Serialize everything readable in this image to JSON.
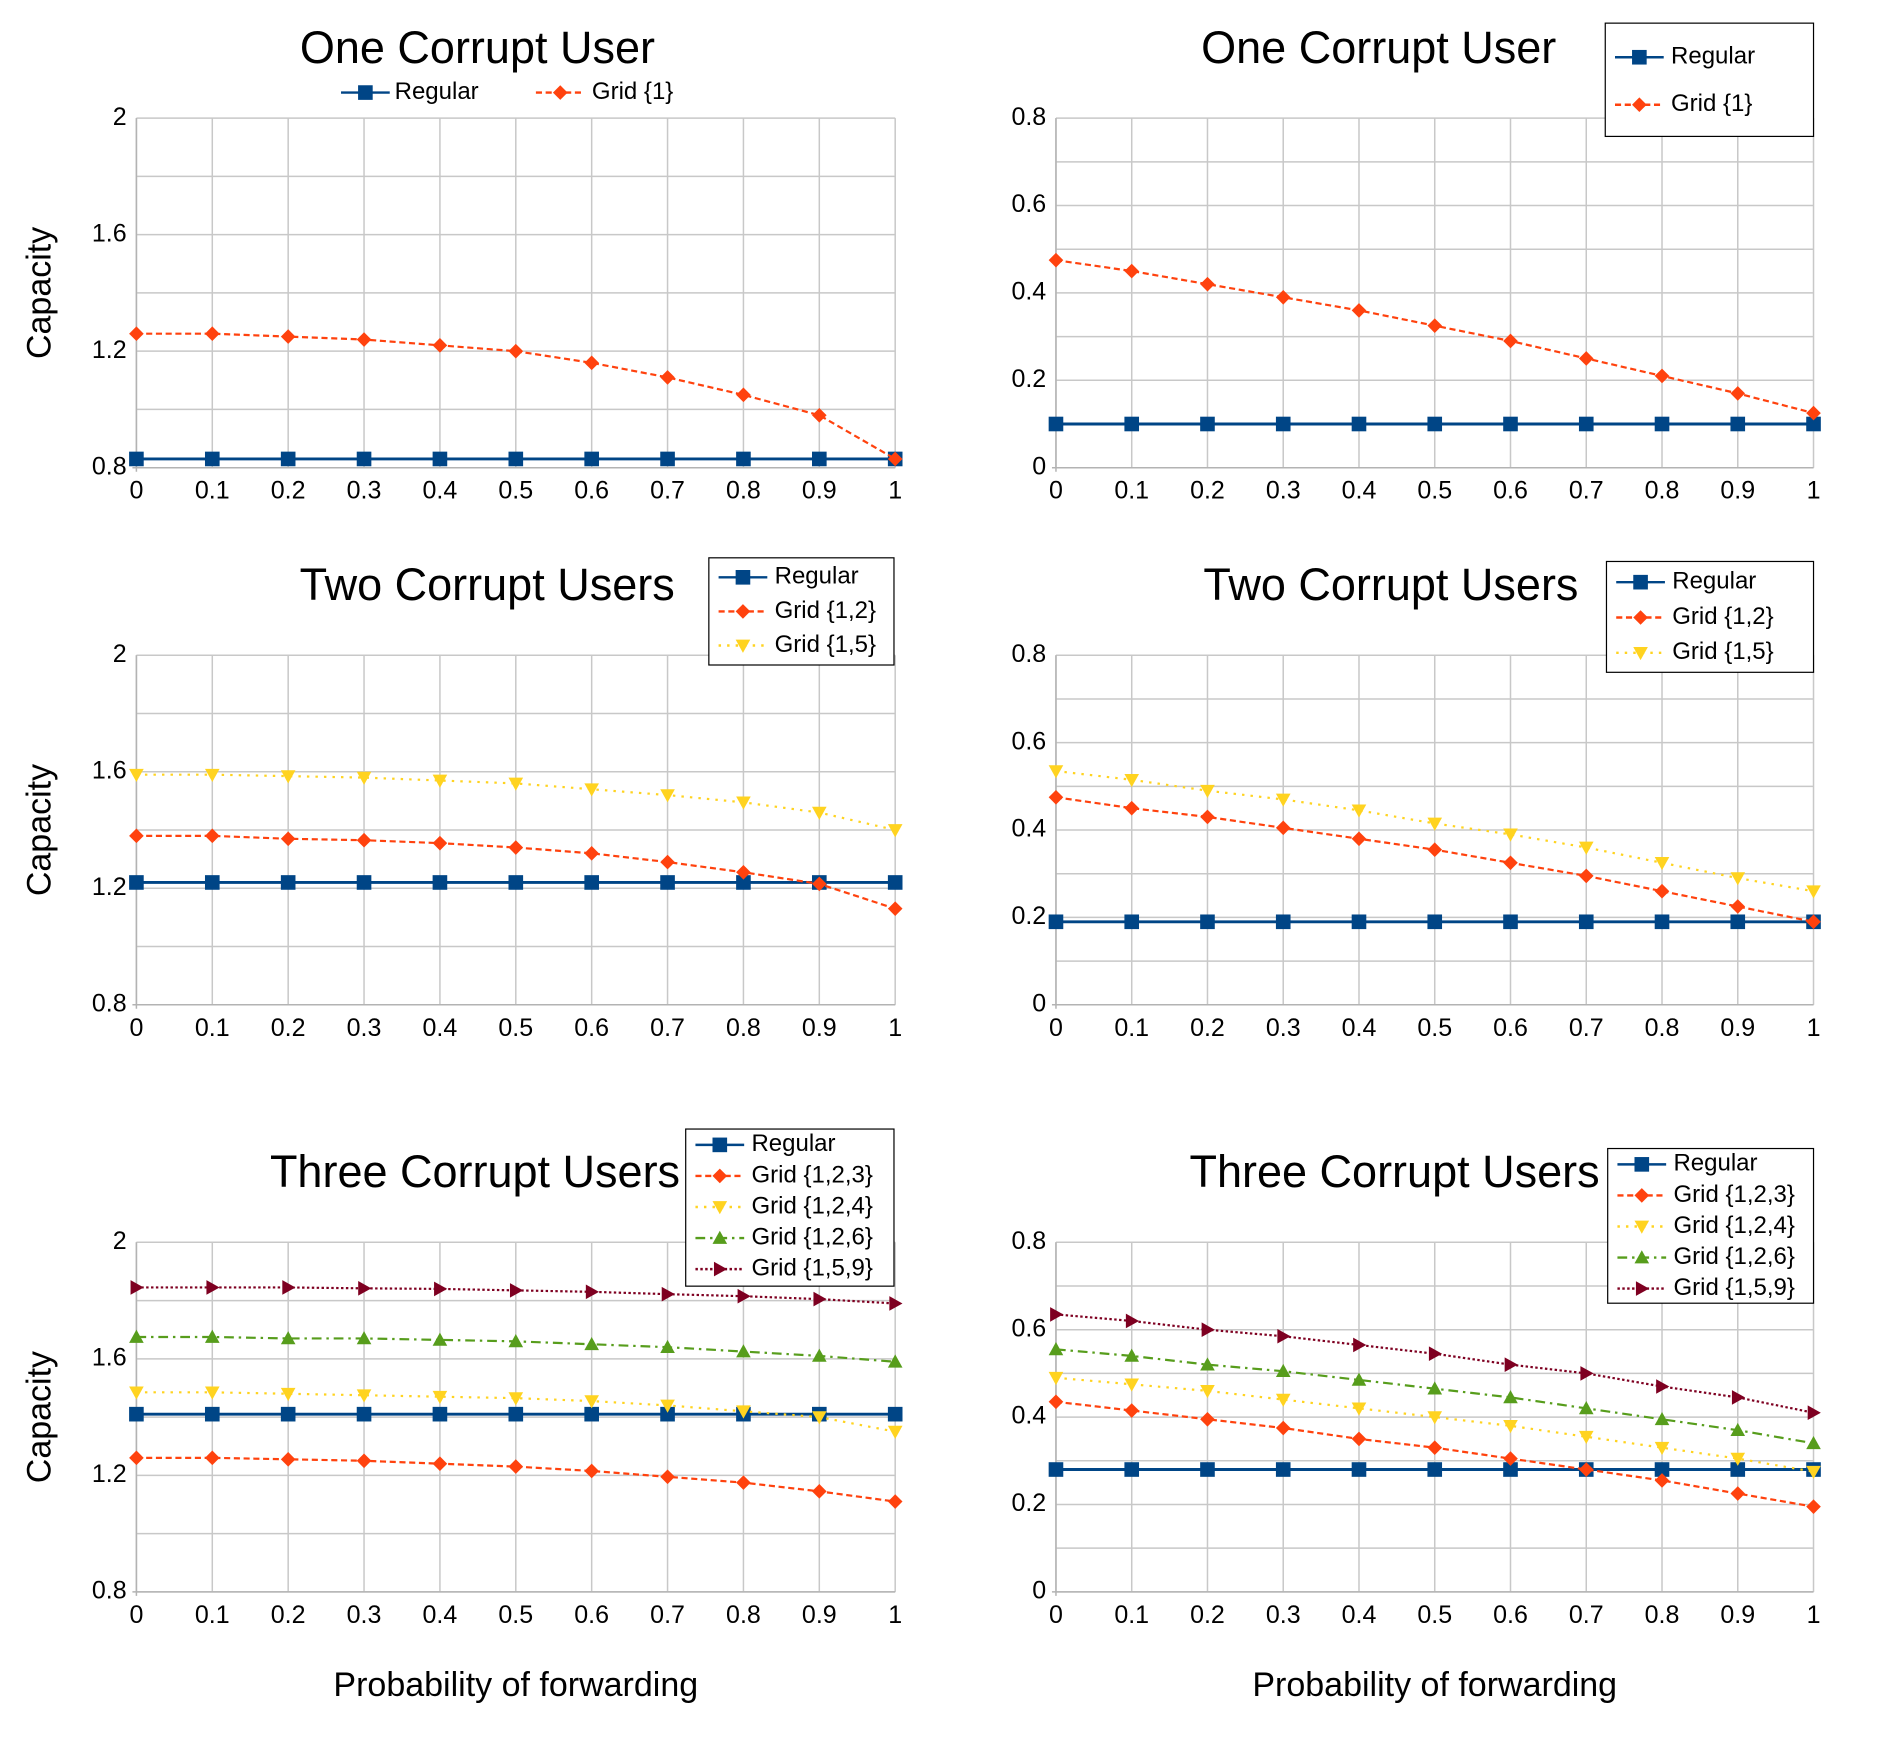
{
  "colors": {
    "Regular": "#004586",
    "Grid {1}": "#ff420e",
    "Grid {1,2}": "#ff420e",
    "Grid {1,2,3}": "#ff420e",
    "Grid {1,5}": "#ffd320",
    "Grid {1,2,4}": "#ffd320",
    "Grid {1,2,6}": "#579d1c",
    "Grid {1,5,9}": "#7e0021"
  },
  "markers": {
    "Regular": "square",
    "Grid {1}": "diamond",
    "Grid {1,2}": "diamond",
    "Grid {1,2,3}": "diamond",
    "Grid {1,5}": "triangle-down",
    "Grid {1,2,4}": "triangle-down",
    "Grid {1,2,6}": "triangle-up",
    "Grid {1,5,9}": "triangle-right"
  },
  "chart_data": [
    {
      "type": "line",
      "title": "One Corrupt User",
      "ylabel": "Capacity",
      "xlabel": "",
      "ylim": [
        0.8,
        2
      ],
      "yticks": [
        "0.8",
        "1.2",
        "1.6",
        "2"
      ],
      "xticks": [
        "0",
        "0.1",
        "0.2",
        "0.3",
        "0.4",
        "0.5",
        "0.6",
        "0.7",
        "0.8",
        "0.9",
        "1"
      ],
      "legend_placement": "top",
      "x": [
        0,
        0.1,
        0.2,
        0.3,
        0.4,
        0.5,
        0.6,
        0.7,
        0.8,
        0.9,
        1
      ],
      "series": [
        {
          "name": "Regular",
          "values": [
            0.83,
            0.83,
            0.83,
            0.83,
            0.83,
            0.83,
            0.83,
            0.83,
            0.83,
            0.83,
            0.83
          ]
        },
        {
          "name": "Grid {1}",
          "values": [
            1.26,
            1.26,
            1.25,
            1.24,
            1.22,
            1.2,
            1.16,
            1.11,
            1.05,
            0.98,
            0.83
          ]
        }
      ]
    },
    {
      "type": "line",
      "title": "One Corrupt User",
      "ylabel": "",
      "xlabel": "",
      "ylim": [
        0,
        0.8
      ],
      "yticks": [
        "0",
        "0.2",
        "0.4",
        "0.6",
        "0.8"
      ],
      "xticks": [
        "0",
        "0.1",
        "0.2",
        "0.3",
        "0.4",
        "0.5",
        "0.6",
        "0.7",
        "0.8",
        "0.9",
        "1"
      ],
      "legend_placement": "top-right",
      "x": [
        0,
        0.1,
        0.2,
        0.3,
        0.4,
        0.5,
        0.6,
        0.7,
        0.8,
        0.9,
        1
      ],
      "series": [
        {
          "name": "Regular",
          "values": [
            0.1,
            0.1,
            0.1,
            0.1,
            0.1,
            0.1,
            0.1,
            0.1,
            0.1,
            0.1,
            0.1
          ]
        },
        {
          "name": "Grid {1}",
          "values": [
            0.475,
            0.45,
            0.42,
            0.39,
            0.36,
            0.325,
            0.29,
            0.25,
            0.21,
            0.17,
            0.125
          ]
        }
      ]
    },
    {
      "type": "line",
      "title": "Two Corrupt Users",
      "ylabel": "Capacity",
      "xlabel": "",
      "ylim": [
        0.8,
        2
      ],
      "yticks": [
        "0.8",
        "1.2",
        "1.6",
        "2"
      ],
      "xticks": [
        "0",
        "0.1",
        "0.2",
        "0.3",
        "0.4",
        "0.5",
        "0.6",
        "0.7",
        "0.8",
        "0.9",
        "1"
      ],
      "legend_placement": "top-right",
      "x": [
        0,
        0.1,
        0.2,
        0.3,
        0.4,
        0.5,
        0.6,
        0.7,
        0.8,
        0.9,
        1
      ],
      "series": [
        {
          "name": "Regular",
          "values": [
            1.22,
            1.22,
            1.22,
            1.22,
            1.22,
            1.22,
            1.22,
            1.22,
            1.22,
            1.22,
            1.22
          ]
        },
        {
          "name": "Grid {1,2}",
          "values": [
            1.38,
            1.38,
            1.37,
            1.365,
            1.355,
            1.34,
            1.32,
            1.29,
            1.255,
            1.215,
            1.13
          ]
        },
        {
          "name": "Grid {1,5}",
          "values": [
            1.59,
            1.59,
            1.585,
            1.58,
            1.57,
            1.56,
            1.54,
            1.52,
            1.495,
            1.46,
            1.4
          ]
        }
      ]
    },
    {
      "type": "line",
      "title": "Two Corrupt Users",
      "ylabel": "",
      "xlabel": "",
      "ylim": [
        0,
        0.8
      ],
      "yticks": [
        "0",
        "0.2",
        "0.4",
        "0.6",
        "0.8"
      ],
      "xticks": [
        "0",
        "0.1",
        "0.2",
        "0.3",
        "0.4",
        "0.5",
        "0.6",
        "0.7",
        "0.8",
        "0.9",
        "1"
      ],
      "legend_placement": "top-right",
      "x": [
        0,
        0.1,
        0.2,
        0.3,
        0.4,
        0.5,
        0.6,
        0.7,
        0.8,
        0.9,
        1
      ],
      "series": [
        {
          "name": "Regular",
          "values": [
            0.19,
            0.19,
            0.19,
            0.19,
            0.19,
            0.19,
            0.19,
            0.19,
            0.19,
            0.19,
            0.19
          ]
        },
        {
          "name": "Grid {1,2}",
          "values": [
            0.475,
            0.45,
            0.43,
            0.405,
            0.38,
            0.355,
            0.325,
            0.295,
            0.26,
            0.225,
            0.19
          ]
        },
        {
          "name": "Grid {1,5}",
          "values": [
            0.535,
            0.515,
            0.49,
            0.47,
            0.445,
            0.415,
            0.39,
            0.36,
            0.325,
            0.29,
            0.26
          ]
        }
      ]
    },
    {
      "type": "line",
      "title": "Three Corrupt Users",
      "ylabel": "Capacity",
      "xlabel": "Probability of forwarding",
      "ylim": [
        0.8,
        2
      ],
      "yticks": [
        "0.8",
        "1.2",
        "1.6",
        "2"
      ],
      "xticks": [
        "0",
        "0.1",
        "0.2",
        "0.3",
        "0.4",
        "0.5",
        "0.6",
        "0.7",
        "0.8",
        "0.9",
        "1"
      ],
      "legend_placement": "top-right",
      "x": [
        0,
        0.1,
        0.2,
        0.3,
        0.4,
        0.5,
        0.6,
        0.7,
        0.8,
        0.9,
        1
      ],
      "series": [
        {
          "name": "Regular",
          "values": [
            1.41,
            1.41,
            1.41,
            1.41,
            1.41,
            1.41,
            1.41,
            1.41,
            1.41,
            1.41,
            1.41
          ]
        },
        {
          "name": "Grid {1,2,3}",
          "values": [
            1.26,
            1.26,
            1.255,
            1.25,
            1.24,
            1.23,
            1.215,
            1.195,
            1.175,
            1.145,
            1.11
          ]
        },
        {
          "name": "Grid {1,2,4}",
          "values": [
            1.485,
            1.485,
            1.48,
            1.475,
            1.47,
            1.465,
            1.455,
            1.44,
            1.42,
            1.4,
            1.35
          ]
        },
        {
          "name": "Grid {1,2,6}",
          "values": [
            1.675,
            1.675,
            1.67,
            1.67,
            1.665,
            1.66,
            1.65,
            1.64,
            1.625,
            1.61,
            1.59
          ]
        },
        {
          "name": "Grid {1,5,9}",
          "values": [
            1.845,
            1.845,
            1.845,
            1.842,
            1.84,
            1.835,
            1.83,
            1.822,
            1.815,
            1.805,
            1.79
          ]
        }
      ]
    },
    {
      "type": "line",
      "title": "Three Corrupt Users",
      "ylabel": "",
      "xlabel": "Probability of forwarding",
      "ylim": [
        0,
        0.8
      ],
      "yticks": [
        "0",
        "0.2",
        "0.4",
        "0.6",
        "0.8"
      ],
      "xticks": [
        "0",
        "0.1",
        "0.2",
        "0.3",
        "0.4",
        "0.5",
        "0.6",
        "0.7",
        "0.8",
        "0.9",
        "1"
      ],
      "legend_placement": "top-right",
      "x": [
        0,
        0.1,
        0.2,
        0.3,
        0.4,
        0.5,
        0.6,
        0.7,
        0.8,
        0.9,
        1
      ],
      "series": [
        {
          "name": "Regular",
          "values": [
            0.28,
            0.28,
            0.28,
            0.28,
            0.28,
            0.28,
            0.28,
            0.28,
            0.28,
            0.28,
            0.28
          ]
        },
        {
          "name": "Grid {1,2,3}",
          "values": [
            0.435,
            0.415,
            0.395,
            0.375,
            0.35,
            0.33,
            0.305,
            0.28,
            0.255,
            0.225,
            0.195
          ]
        },
        {
          "name": "Grid {1,2,4}",
          "values": [
            0.49,
            0.475,
            0.46,
            0.44,
            0.42,
            0.4,
            0.38,
            0.355,
            0.33,
            0.305,
            0.275
          ]
        },
        {
          "name": "Grid {1,2,6}",
          "values": [
            0.555,
            0.54,
            0.52,
            0.505,
            0.485,
            0.465,
            0.445,
            0.42,
            0.395,
            0.37,
            0.34
          ]
        },
        {
          "name": "Grid {1,5,9}",
          "values": [
            0.635,
            0.62,
            0.6,
            0.585,
            0.565,
            0.545,
            0.52,
            0.5,
            0.47,
            0.445,
            0.41
          ]
        }
      ]
    }
  ]
}
